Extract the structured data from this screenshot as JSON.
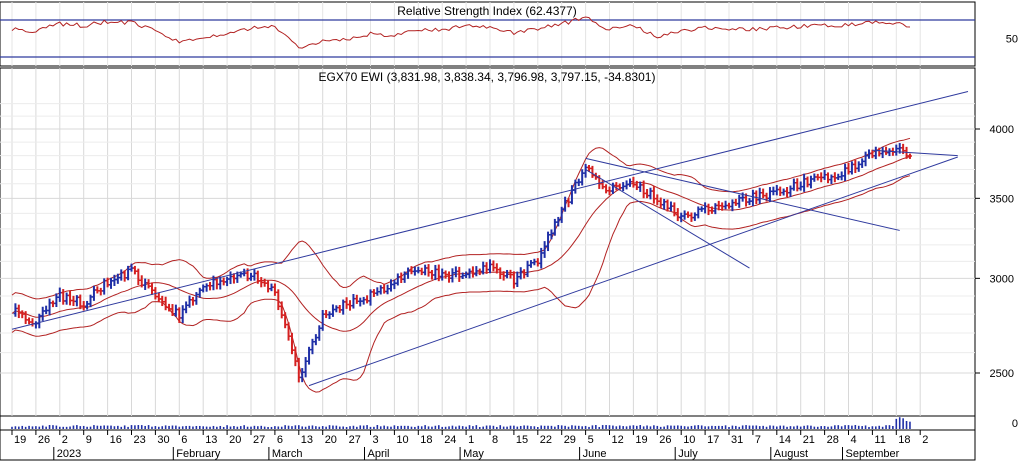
{
  "chart_data": [
    {
      "type": "line",
      "title": "Relative Strength Index (62.4377)",
      "y_ticks": [
        "50"
      ],
      "series": [
        {
          "color": "#b22222",
          "x": [
            "2022-12-19",
            "2022-12-26",
            "2023-01-02",
            "2023-01-09",
            "2023-01-16",
            "2023-01-23",
            "2023-01-30",
            "2023-02-06",
            "2023-02-13",
            "2023-02-20",
            "2023-02-27",
            "2023-03-06",
            "2023-03-13",
            "2023-03-20",
            "2023-03-27",
            "2023-04-03",
            "2023-04-10",
            "2023-04-17",
            "2023-04-24",
            "2023-05-01",
            "2023-05-08",
            "2023-05-15",
            "2023-05-22",
            "2023-05-29",
            "2023-06-05",
            "2023-06-12",
            "2023-06-19",
            "2023-06-26",
            "2023-07-03",
            "2023-07-10",
            "2023-07-17",
            "2023-07-24",
            "2023-07-31",
            "2023-08-07",
            "2023-08-14",
            "2023-08-21",
            "2023-08-28",
            "2023-09-04",
            "2023-09-08"
          ],
          "values": [
            60,
            58,
            66,
            64,
            68,
            67,
            58,
            46,
            51,
            56,
            61,
            63,
            40,
            47,
            49,
            55,
            53,
            60,
            59,
            65,
            61,
            56,
            60,
            66,
            72,
            60,
            64,
            52,
            58,
            62,
            61,
            60,
            62,
            63,
            64,
            65,
            68,
            66,
            62.4
          ]
        }
      ],
      "hlines": [
        70,
        30
      ]
    },
    {
      "type": "bar",
      "title": "EGX70 EWI (3,831.98, 3,838.34, 3,796.98, 3,797.15, -34.8301)",
      "y_scale": "log",
      "ylim": [
        2300,
        4350
      ],
      "y_ticks": [
        "4000",
        "3500",
        "3000",
        "2500"
      ],
      "x_ticks": [
        "19",
        "26",
        "2",
        "9",
        "16",
        "23",
        "30",
        "6",
        "13",
        "20",
        "27",
        "6",
        "13",
        "20",
        "27",
        "3",
        "10",
        "18",
        "24",
        "1",
        "8",
        "15",
        "22",
        "29",
        "5",
        "12",
        "19",
        "26",
        "10",
        "17",
        "31",
        "7",
        "14",
        "21",
        "28",
        "4",
        "11",
        "18",
        "2"
      ],
      "months": [
        "2023",
        "February",
        "March",
        "April",
        "May",
        "June",
        "July",
        "August",
        "September"
      ],
      "up_color": "#1f2fa6",
      "down_color": "#d42020",
      "band_color": "#b22222",
      "trendline_color": "#2f3a9e",
      "close_dates": [
        "2022-12-19",
        "2022-12-26",
        "2023-01-02",
        "2023-01-09",
        "2023-01-16",
        "2023-01-23",
        "2023-01-30",
        "2023-02-06",
        "2023-02-13",
        "2023-02-20",
        "2023-02-27",
        "2023-03-06",
        "2023-03-13",
        "2023-03-20",
        "2023-03-27",
        "2023-04-03",
        "2023-04-10",
        "2023-04-17",
        "2023-04-24",
        "2023-05-01",
        "2023-05-08",
        "2023-05-15",
        "2023-05-22",
        "2023-05-29",
        "2023-06-05",
        "2023-06-12",
        "2023-06-19",
        "2023-06-26",
        "2023-07-03",
        "2023-07-10",
        "2023-07-17",
        "2023-07-24",
        "2023-07-31",
        "2023-08-07",
        "2023-08-14",
        "2023-08-21",
        "2023-08-28",
        "2023-09-04",
        "2023-09-08"
      ],
      "close_values": [
        2820,
        2760,
        2900,
        2860,
        2980,
        3040,
        2890,
        2790,
        2960,
        3010,
        3020,
        2920,
        2480,
        2780,
        2860,
        2900,
        2980,
        3060,
        3020,
        3030,
        3060,
        2990,
        3100,
        3420,
        3700,
        3560,
        3600,
        3500,
        3370,
        3430,
        3470,
        3510,
        3540,
        3600,
        3640,
        3700,
        3820,
        3840,
        3797.15
      ]
    }
  ]
}
